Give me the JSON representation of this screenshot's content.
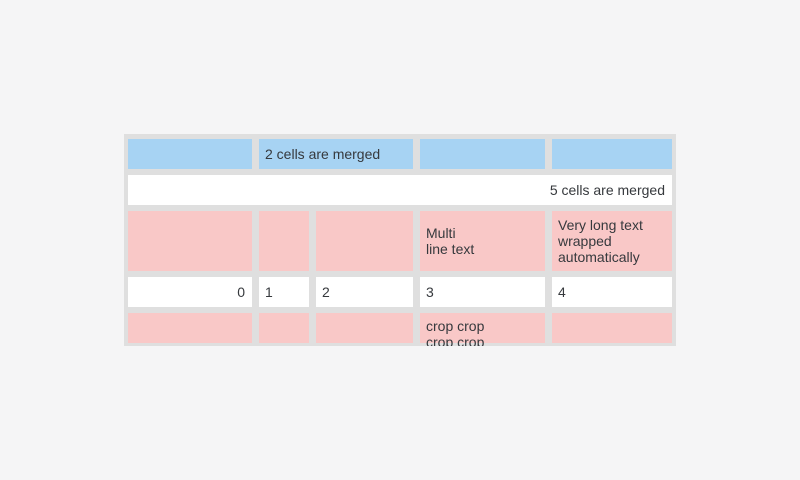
{
  "colors": {
    "page_bg": "#f5f5f6",
    "table_frame_bg": "#dfdfdf",
    "header_cell_bg": "#a7d3f3",
    "plain_cell_bg": "#ffffff",
    "highlight_cell_bg": "#f9c8c7",
    "text": "#36393d"
  },
  "table": {
    "rows": [
      {
        "cells": [
          {
            "text": ""
          },
          {
            "text": "2 cells are merged"
          },
          {
            "text": ""
          },
          {
            "text": ""
          }
        ]
      },
      {
        "cells": [
          {
            "text": "5 cells are merged"
          }
        ]
      },
      {
        "cells": [
          {
            "text": ""
          },
          {
            "text": ""
          },
          {
            "text": ""
          },
          {
            "text": "Multi\nline text"
          },
          {
            "text": "Very long text\nwrapped\nautomatically"
          }
        ]
      },
      {
        "cells": [
          {
            "text": "0"
          },
          {
            "text": "1"
          },
          {
            "text": "2"
          },
          {
            "text": "3"
          },
          {
            "text": "4"
          }
        ]
      },
      {
        "cells": [
          {
            "text": ""
          },
          {
            "text": ""
          },
          {
            "text": ""
          },
          {
            "text": "crop crop\ncrop crop"
          },
          {
            "text": ""
          }
        ]
      }
    ]
  }
}
